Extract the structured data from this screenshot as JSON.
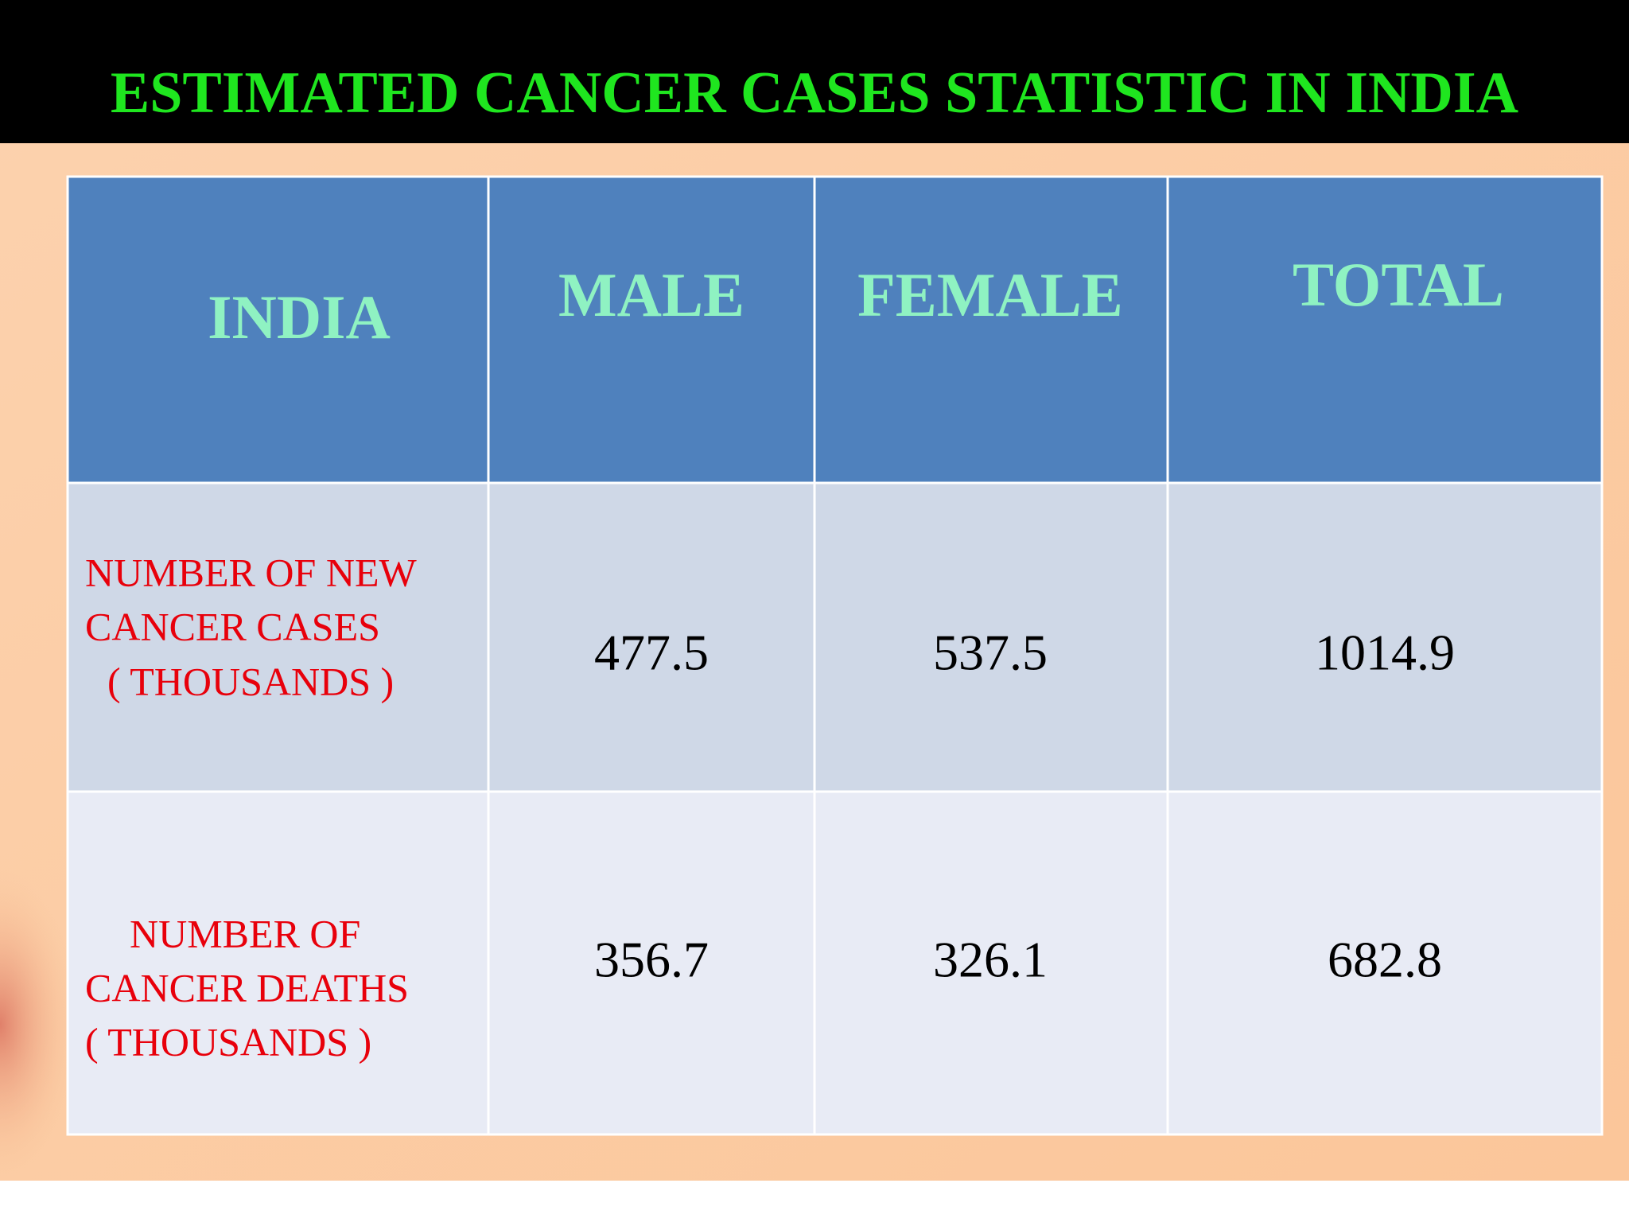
{
  "header": {
    "title": "ESTIMATED CANCER CASES STATISTIC IN INDIA"
  },
  "table": {
    "columns": [
      "INDIA",
      "MALE",
      "FEMALE",
      "TOTAL"
    ],
    "rows": [
      {
        "label": [
          "NUMBER OF NEW",
          "CANCER CASES",
          "( THOUSANDS )"
        ],
        "values": [
          "477.5",
          "537.5",
          "1014.9"
        ]
      },
      {
        "label": [
          "NUMBER OF",
          "CANCER DEATHS",
          "( THOUSANDS )"
        ],
        "values": [
          "356.7",
          "326.1",
          "682.8"
        ]
      }
    ]
  }
}
